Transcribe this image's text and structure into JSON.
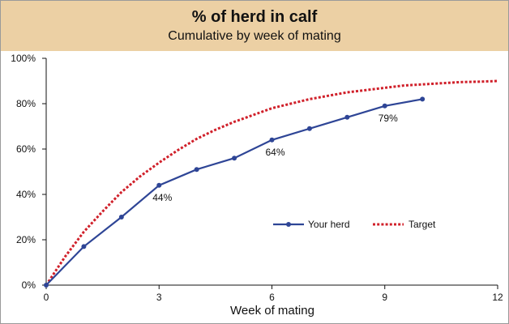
{
  "chart_data": {
    "type": "line",
    "title": "% of herd in calf",
    "subtitle": "Cumulative by week of mating",
    "xlabel": "Week of mating",
    "ylabel": "",
    "xlim": [
      0,
      12
    ],
    "ylim": [
      0,
      100
    ],
    "x_ticks": [
      "0",
      "3",
      "6",
      "9",
      "12"
    ],
    "y_ticks": [
      "0%",
      "20%",
      "40%",
      "60%",
      "80%",
      "100%"
    ],
    "legend_position": "center-right",
    "grid": false,
    "series": [
      {
        "name": "Your herd",
        "style": "solid-markers",
        "color": "#2e4596",
        "x": [
          0,
          1,
          2,
          3,
          4,
          5,
          6,
          7,
          8,
          9,
          10
        ],
        "values": [
          0,
          17,
          30,
          44,
          51,
          56,
          64,
          69,
          74,
          79,
          82
        ]
      },
      {
        "name": "Target",
        "style": "dotted",
        "color": "#d0202a",
        "x": [
          0,
          0.5,
          1,
          1.5,
          2,
          2.5,
          3,
          3.5,
          4,
          4.5,
          5,
          5.5,
          6,
          6.5,
          7,
          7.5,
          8,
          8.5,
          9,
          9.5,
          10,
          10.5,
          11,
          11.5,
          12
        ],
        "values": [
          0,
          12.5,
          23.5,
          32.5,
          41,
          48,
          54,
          59.5,
          64.5,
          68.5,
          72,
          75,
          78,
          80,
          82,
          83.5,
          85,
          86,
          87,
          88,
          88.5,
          89,
          89.5,
          89.7,
          90
        ]
      }
    ],
    "annotations": [
      {
        "x": 3,
        "y": 44,
        "text": "44%"
      },
      {
        "x": 6,
        "y": 64,
        "text": "64%"
      },
      {
        "x": 9,
        "y": 79,
        "text": "79%"
      }
    ]
  }
}
